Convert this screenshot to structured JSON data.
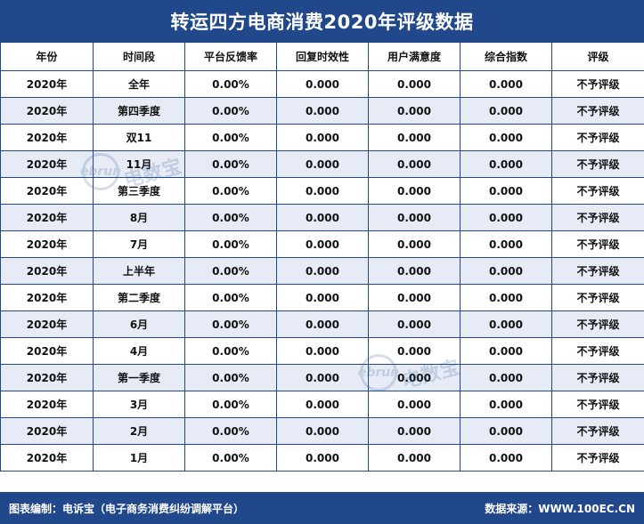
{
  "title": "转运四方电商消费2020年评级数据",
  "table": {
    "headers": [
      "年份",
      "时间段",
      "平台反馈率",
      "回复时效性",
      "用户满意度",
      "综合指数",
      "评级"
    ],
    "rows": [
      [
        "2020年",
        "全年",
        "0.00%",
        "0.000",
        "0.000",
        "0.000",
        "不予评级"
      ],
      [
        "2020年",
        "第四季度",
        "0.00%",
        "0.000",
        "0.000",
        "0.000",
        "不予评级"
      ],
      [
        "2020年",
        "双11",
        "0.00%",
        "0.000",
        "0.000",
        "0.000",
        "不予评级"
      ],
      [
        "2020年",
        "11月",
        "0.00%",
        "0.000",
        "0.000",
        "0.000",
        "不予评级"
      ],
      [
        "2020年",
        "第三季度",
        "0.00%",
        "0.000",
        "0.000",
        "0.000",
        "不予评级"
      ],
      [
        "2020年",
        "8月",
        "0.00%",
        "0.000",
        "0.000",
        "0.000",
        "不予评级"
      ],
      [
        "2020年",
        "7月",
        "0.00%",
        "0.000",
        "0.000",
        "0.000",
        "不予评级"
      ],
      [
        "2020年",
        "上半年",
        "0.00%",
        "0.000",
        "0.000",
        "0.000",
        "不予评级"
      ],
      [
        "2020年",
        "第二季度",
        "0.00%",
        "0.000",
        "0.000",
        "0.000",
        "不予评级"
      ],
      [
        "2020年",
        "6月",
        "0.00%",
        "0.000",
        "0.000",
        "0.000",
        "不予评级"
      ],
      [
        "2020年",
        "4月",
        "0.00%",
        "0.000",
        "0.000",
        "0.000",
        "不予评级"
      ],
      [
        "2020年",
        "第一季度",
        "0.00%",
        "0.000",
        "0.000",
        "0.000",
        "不予评级"
      ],
      [
        "2020年",
        "3月",
        "0.00%",
        "0.000",
        "0.000",
        "0.000",
        "不予评级"
      ],
      [
        "2020年",
        "2月",
        "0.00%",
        "0.000",
        "0.000",
        "0.000",
        "不予评级"
      ],
      [
        "2020年",
        "1月",
        "0.00%",
        "0.000",
        "0.000",
        "0.000",
        "不予评级"
      ]
    ]
  },
  "footer": {
    "left": "图表编制：电诉宝（电子商务消费纠纷调解平台）",
    "right": "数据来源：WWW.100EC.CN"
  },
  "watermark": {
    "logo": "ebrun",
    "text": "电数宝"
  },
  "colors": {
    "brand": "#22488c",
    "stripe": "#e6ebf5"
  }
}
